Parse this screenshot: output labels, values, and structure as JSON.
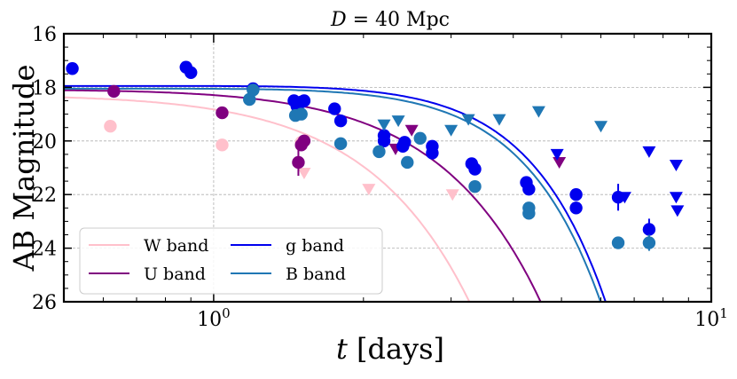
{
  "chart_data": {
    "type": "scatter",
    "title": "D = 40 Mpc",
    "title_parts": {
      "var": "D",
      "rest": " = 40 Mpc"
    },
    "xlabel": "t [days]",
    "xlabel_parts": {
      "var": "t",
      "rest": " [days]"
    },
    "ylabel": "AB Magnitude",
    "xscale": "log",
    "xlim": [
      0.5,
      10
    ],
    "ylim": [
      26,
      16
    ],
    "y_inverted": true,
    "grid": true,
    "x_ticks": [
      {
        "value": 1,
        "label": "10",
        "sup": "0"
      },
      {
        "value": 10,
        "label": "10",
        "sup": "1"
      }
    ],
    "y_ticks": [
      {
        "value": 16,
        "label": "16"
      },
      {
        "value": 18,
        "label": "18"
      },
      {
        "value": 20,
        "label": "20"
      },
      {
        "value": 22,
        "label": "22"
      },
      {
        "value": 24,
        "label": "24"
      },
      {
        "value": 26,
        "label": "26"
      }
    ],
    "legend_position": "lower-left",
    "series": [
      {
        "name": "W band",
        "color": "#ffc0cb",
        "model": {
          "peak_mag": 18.3,
          "t_peak": 0.2,
          "k": 0.82,
          "p": 2.0
        },
        "detections": [
          {
            "t": 0.62,
            "mag": 19.45
          },
          {
            "t": 1.04,
            "mag": 20.15
          },
          {
            "t": 1.5,
            "mag": 20.05
          }
        ],
        "limits": [
          {
            "t": 1.52,
            "mag": 21.2
          },
          {
            "t": 2.05,
            "mag": 21.8
          },
          {
            "t": 3.02,
            "mag": 22.0
          }
        ]
      },
      {
        "name": "U band",
        "color": "#800080",
        "model": {
          "peak_mag": 18.1,
          "t_peak": 0.35,
          "k": 0.45,
          "p": 2.0
        },
        "detections": [
          {
            "t": 0.63,
            "mag": 18.15
          },
          {
            "t": 1.04,
            "mag": 18.95
          },
          {
            "t": 1.48,
            "mag": 20.8,
            "err": 0.5
          },
          {
            "t": 1.5,
            "mag": 20.15
          },
          {
            "t": 1.52,
            "mag": 20.0
          }
        ],
        "limits": [
          {
            "t": 2.32,
            "mag": 20.3
          },
          {
            "t": 2.5,
            "mag": 19.6
          },
          {
            "t": 4.95,
            "mag": 20.8
          }
        ]
      },
      {
        "name": "g band",
        "color": "#0000ee",
        "model": {
          "peak_mag": 17.95,
          "t_peak": 0.85,
          "k": 0.1255,
          "p": 2.5
        },
        "detections": [
          {
            "t": 0.52,
            "mag": 17.3
          },
          {
            "t": 0.88,
            "mag": 17.25
          },
          {
            "t": 0.9,
            "mag": 17.45
          },
          {
            "t": 1.2,
            "mag": 18.05
          },
          {
            "t": 1.45,
            "mag": 18.5
          },
          {
            "t": 1.47,
            "mag": 18.7
          },
          {
            "t": 1.5,
            "mag": 18.55
          },
          {
            "t": 1.52,
            "mag": 18.5
          },
          {
            "t": 1.75,
            "mag": 18.8
          },
          {
            "t": 1.8,
            "mag": 19.25
          },
          {
            "t": 2.2,
            "mag": 19.8
          },
          {
            "t": 2.2,
            "mag": 20.0
          },
          {
            "t": 2.4,
            "mag": 20.2
          },
          {
            "t": 2.42,
            "mag": 20.05
          },
          {
            "t": 2.75,
            "mag": 20.2
          },
          {
            "t": 2.75,
            "mag": 20.45
          },
          {
            "t": 3.3,
            "mag": 20.85
          },
          {
            "t": 3.35,
            "mag": 21.05
          },
          {
            "t": 4.25,
            "mag": 21.55
          },
          {
            "t": 4.3,
            "mag": 21.8
          },
          {
            "t": 5.35,
            "mag": 22.0
          },
          {
            "t": 5.35,
            "mag": 22.5
          },
          {
            "t": 6.5,
            "mag": 22.1,
            "err": 0.5
          },
          {
            "t": 7.5,
            "mag": 23.3,
            "err": 0.4
          }
        ],
        "limits": [
          {
            "t": 4.9,
            "mag": 20.5
          },
          {
            "t": 6.7,
            "mag": 22.1
          },
          {
            "t": 7.5,
            "mag": 20.4
          },
          {
            "t": 8.5,
            "mag": 20.9
          },
          {
            "t": 8.5,
            "mag": 22.1
          },
          {
            "t": 8.55,
            "mag": 22.6
          }
        ]
      },
      {
        "name": "B band",
        "color": "#1f77b4",
        "model": {
          "peak_mag": 18.05,
          "t_peak": 0.75,
          "k": 0.1265,
          "p": 2.5
        },
        "detections": [
          {
            "t": 1.18,
            "mag": 18.45
          },
          {
            "t": 1.2,
            "mag": 18.1
          },
          {
            "t": 1.46,
            "mag": 19.05
          },
          {
            "t": 1.5,
            "mag": 19.0
          },
          {
            "t": 1.8,
            "mag": 20.1
          },
          {
            "t": 2.15,
            "mag": 20.4
          },
          {
            "t": 2.45,
            "mag": 20.8
          },
          {
            "t": 2.6,
            "mag": 19.9
          },
          {
            "t": 3.35,
            "mag": 21.7
          },
          {
            "t": 4.3,
            "mag": 22.5
          },
          {
            "t": 4.3,
            "mag": 22.7
          },
          {
            "t": 6.5,
            "mag": 23.8
          },
          {
            "t": 7.5,
            "mag": 23.8,
            "err": 0.3
          }
        ],
        "limits": [
          {
            "t": 2.2,
            "mag": 19.4
          },
          {
            "t": 2.35,
            "mag": 19.25
          },
          {
            "t": 3.0,
            "mag": 19.6
          },
          {
            "t": 3.25,
            "mag": 19.2
          },
          {
            "t": 3.75,
            "mag": 19.2
          },
          {
            "t": 4.5,
            "mag": 18.9
          },
          {
            "t": 6.0,
            "mag": 19.45
          }
        ]
      }
    ]
  }
}
